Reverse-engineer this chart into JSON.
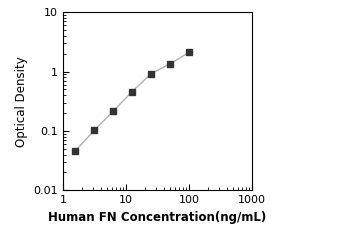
{
  "x_data": [
    1.563,
    3.125,
    6.25,
    12.5,
    25,
    50,
    100
  ],
  "y_data": [
    0.046,
    0.102,
    0.215,
    0.46,
    0.92,
    1.35,
    2.1
  ],
  "xlim": [
    1,
    1000
  ],
  "ylim": [
    0.01,
    10
  ],
  "xlabel": "Human FN Concentration(ng/mL)",
  "ylabel": "Optical Density",
  "x_ticks": [
    1,
    10,
    100,
    1000
  ],
  "y_ticks": [
    0.01,
    0.1,
    1,
    10
  ],
  "x_tick_labels": [
    "1",
    "10",
    "100",
    "1000"
  ],
  "y_tick_labels": [
    "0.01",
    "0.1",
    "1",
    "10"
  ],
  "line_color": "#b0b0b0",
  "marker_color": "#333333",
  "marker_size": 5,
  "line_width": 1.0,
  "xlabel_fontsize": 8.5,
  "ylabel_fontsize": 8.5,
  "tick_fontsize": 8,
  "fig_width": 3.5,
  "fig_height": 2.44,
  "dpi": 100
}
